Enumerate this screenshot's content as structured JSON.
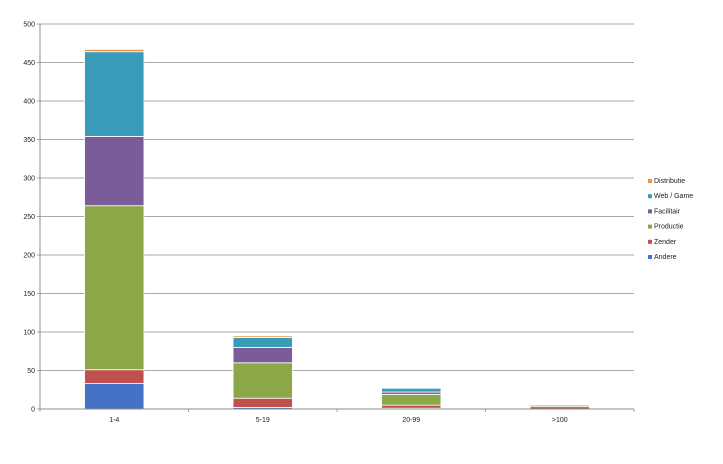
{
  "chart_data": {
    "type": "bar",
    "stacked": true,
    "title": "",
    "xlabel": "",
    "ylabel": "",
    "categories": [
      "1-4",
      "5-19",
      "20-99",
      ">100"
    ],
    "ylim": [
      0,
      500
    ],
    "yticks": [
      0,
      50,
      100,
      150,
      200,
      250,
      300,
      350,
      400,
      450,
      500
    ],
    "grid": true,
    "legend_position": "right",
    "series": [
      {
        "name": "Andere",
        "color": "#4472C4",
        "values": [
          33,
          2,
          1,
          0
        ]
      },
      {
        "name": "Zender",
        "color": "#C0504D",
        "values": [
          18,
          12,
          4,
          3
        ]
      },
      {
        "name": "Productie",
        "color": "#8BA748",
        "values": [
          213,
          46,
          14,
          2
        ]
      },
      {
        "name": "Facilitair",
        "color": "#7A5C98",
        "values": [
          90,
          20,
          3,
          1
        ]
      },
      {
        "name": "Web / Game",
        "color": "#3A9BB8",
        "values": [
          110,
          13,
          5,
          1
        ]
      },
      {
        "name": "Distributie",
        "color": "#E8944A",
        "values": [
          3,
          2,
          1,
          1
        ]
      }
    ]
  }
}
